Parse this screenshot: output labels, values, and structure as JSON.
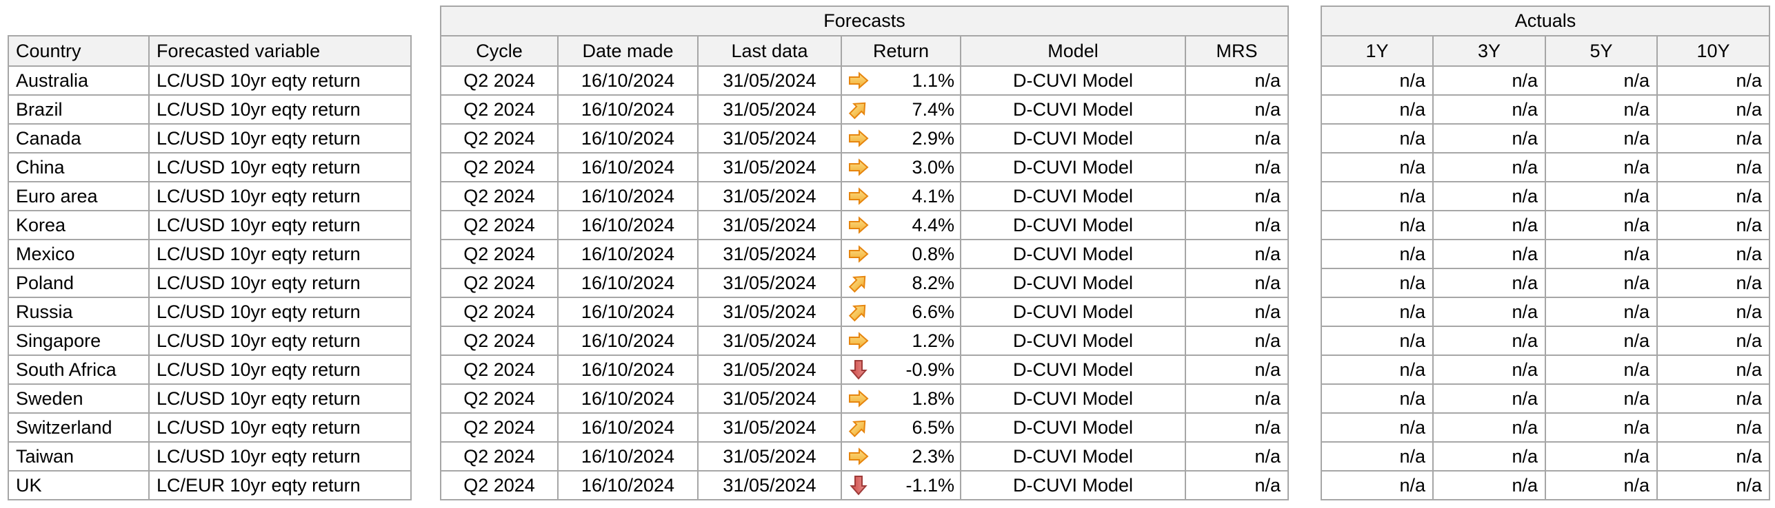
{
  "colors": {
    "header_bg": "#f2f2f2",
    "border": "#a6a6a6",
    "text": "#000000",
    "arrow_yellow_fill_top": "#fbdd84",
    "arrow_yellow_fill_bottom": "#f3ae34",
    "arrow_yellow_stroke": "#e6850e",
    "arrow_red_fill_top": "#e4908c",
    "arrow_red_fill_bottom": "#d14a48",
    "arrow_red_stroke": "#9e3a38"
  },
  "country_table": {
    "headers": {
      "country": "Country",
      "variable": "Forecasted variable"
    }
  },
  "forecasts_table": {
    "title": "Forecasts",
    "headers": {
      "cycle": "Cycle",
      "date_made": "Date made",
      "last_data": "Last data",
      "return": "Return",
      "model": "Model",
      "mrs": "MRS"
    }
  },
  "actuals_table": {
    "title": "Actuals",
    "headers": {
      "y1": "1Y",
      "y3": "3Y",
      "y5": "5Y",
      "y10": "10Y"
    }
  },
  "trend_icon_names": {
    "flat": "arrow-right-icon",
    "up": "arrow-up-right-icon",
    "down": "arrow-down-icon"
  },
  "rows": [
    {
      "country": "Australia",
      "variable": "LC/USD 10yr eqty return",
      "cycle": "Q2 2024",
      "date_made": "16/10/2024",
      "last_data": "31/05/2024",
      "trend": "flat",
      "return": "1.1%",
      "model": "D-CUVI Model",
      "mrs": "n/a",
      "actual_1y": "n/a",
      "actual_3y": "n/a",
      "actual_5y": "n/a",
      "actual_10y": "n/a"
    },
    {
      "country": "Brazil",
      "variable": "LC/USD 10yr eqty return",
      "cycle": "Q2 2024",
      "date_made": "16/10/2024",
      "last_data": "31/05/2024",
      "trend": "up",
      "return": "7.4%",
      "model": "D-CUVI Model",
      "mrs": "n/a",
      "actual_1y": "n/a",
      "actual_3y": "n/a",
      "actual_5y": "n/a",
      "actual_10y": "n/a"
    },
    {
      "country": "Canada",
      "variable": "LC/USD 10yr eqty return",
      "cycle": "Q2 2024",
      "date_made": "16/10/2024",
      "last_data": "31/05/2024",
      "trend": "flat",
      "return": "2.9%",
      "model": "D-CUVI Model",
      "mrs": "n/a",
      "actual_1y": "n/a",
      "actual_3y": "n/a",
      "actual_5y": "n/a",
      "actual_10y": "n/a"
    },
    {
      "country": "China",
      "variable": "LC/USD 10yr eqty return",
      "cycle": "Q2 2024",
      "date_made": "16/10/2024",
      "last_data": "31/05/2024",
      "trend": "flat",
      "return": "3.0%",
      "model": "D-CUVI Model",
      "mrs": "n/a",
      "actual_1y": "n/a",
      "actual_3y": "n/a",
      "actual_5y": "n/a",
      "actual_10y": "n/a"
    },
    {
      "country": "Euro area",
      "variable": "LC/USD 10yr eqty return",
      "cycle": "Q2 2024",
      "date_made": "16/10/2024",
      "last_data": "31/05/2024",
      "trend": "flat",
      "return": "4.1%",
      "model": "D-CUVI Model",
      "mrs": "n/a",
      "actual_1y": "n/a",
      "actual_3y": "n/a",
      "actual_5y": "n/a",
      "actual_10y": "n/a"
    },
    {
      "country": "Korea",
      "variable": "LC/USD 10yr eqty return",
      "cycle": "Q2 2024",
      "date_made": "16/10/2024",
      "last_data": "31/05/2024",
      "trend": "flat",
      "return": "4.4%",
      "model": "D-CUVI Model",
      "mrs": "n/a",
      "actual_1y": "n/a",
      "actual_3y": "n/a",
      "actual_5y": "n/a",
      "actual_10y": "n/a"
    },
    {
      "country": "Mexico",
      "variable": "LC/USD 10yr eqty return",
      "cycle": "Q2 2024",
      "date_made": "16/10/2024",
      "last_data": "31/05/2024",
      "trend": "flat",
      "return": "0.8%",
      "model": "D-CUVI Model",
      "mrs": "n/a",
      "actual_1y": "n/a",
      "actual_3y": "n/a",
      "actual_5y": "n/a",
      "actual_10y": "n/a"
    },
    {
      "country": "Poland",
      "variable": "LC/USD 10yr eqty return",
      "cycle": "Q2 2024",
      "date_made": "16/10/2024",
      "last_data": "31/05/2024",
      "trend": "up",
      "return": "8.2%",
      "model": "D-CUVI Model",
      "mrs": "n/a",
      "actual_1y": "n/a",
      "actual_3y": "n/a",
      "actual_5y": "n/a",
      "actual_10y": "n/a"
    },
    {
      "country": "Russia",
      "variable": "LC/USD 10yr eqty return",
      "cycle": "Q2 2024",
      "date_made": "16/10/2024",
      "last_data": "31/05/2024",
      "trend": "up",
      "return": "6.6%",
      "model": "D-CUVI Model",
      "mrs": "n/a",
      "actual_1y": "n/a",
      "actual_3y": "n/a",
      "actual_5y": "n/a",
      "actual_10y": "n/a"
    },
    {
      "country": "Singapore",
      "variable": "LC/USD 10yr eqty return",
      "cycle": "Q2 2024",
      "date_made": "16/10/2024",
      "last_data": "31/05/2024",
      "trend": "flat",
      "return": "1.2%",
      "model": "D-CUVI Model",
      "mrs": "n/a",
      "actual_1y": "n/a",
      "actual_3y": "n/a",
      "actual_5y": "n/a",
      "actual_10y": "n/a"
    },
    {
      "country": "South Africa",
      "variable": "LC/USD 10yr eqty return",
      "cycle": "Q2 2024",
      "date_made": "16/10/2024",
      "last_data": "31/05/2024",
      "trend": "down",
      "return": "-0.9%",
      "model": "D-CUVI Model",
      "mrs": "n/a",
      "actual_1y": "n/a",
      "actual_3y": "n/a",
      "actual_5y": "n/a",
      "actual_10y": "n/a"
    },
    {
      "country": "Sweden",
      "variable": "LC/USD 10yr eqty return",
      "cycle": "Q2 2024",
      "date_made": "16/10/2024",
      "last_data": "31/05/2024",
      "trend": "flat",
      "return": "1.8%",
      "model": "D-CUVI Model",
      "mrs": "n/a",
      "actual_1y": "n/a",
      "actual_3y": "n/a",
      "actual_5y": "n/a",
      "actual_10y": "n/a"
    },
    {
      "country": "Switzerland",
      "variable": "LC/USD 10yr eqty return",
      "cycle": "Q2 2024",
      "date_made": "16/10/2024",
      "last_data": "31/05/2024",
      "trend": "up",
      "return": "6.5%",
      "model": "D-CUVI Model",
      "mrs": "n/a",
      "actual_1y": "n/a",
      "actual_3y": "n/a",
      "actual_5y": "n/a",
      "actual_10y": "n/a"
    },
    {
      "country": "Taiwan",
      "variable": "LC/USD 10yr eqty return",
      "cycle": "Q2 2024",
      "date_made": "16/10/2024",
      "last_data": "31/05/2024",
      "trend": "flat",
      "return": "2.3%",
      "model": "D-CUVI Model",
      "mrs": "n/a",
      "actual_1y": "n/a",
      "actual_3y": "n/a",
      "actual_5y": "n/a",
      "actual_10y": "n/a"
    },
    {
      "country": "UK",
      "variable": "LC/EUR 10yr eqty return",
      "cycle": "Q2 2024",
      "date_made": "16/10/2024",
      "last_data": "31/05/2024",
      "trend": "down",
      "return": "-1.1%",
      "model": "D-CUVI Model",
      "mrs": "n/a",
      "actual_1y": "n/a",
      "actual_3y": "n/a",
      "actual_5y": "n/a",
      "actual_10y": "n/a"
    }
  ]
}
